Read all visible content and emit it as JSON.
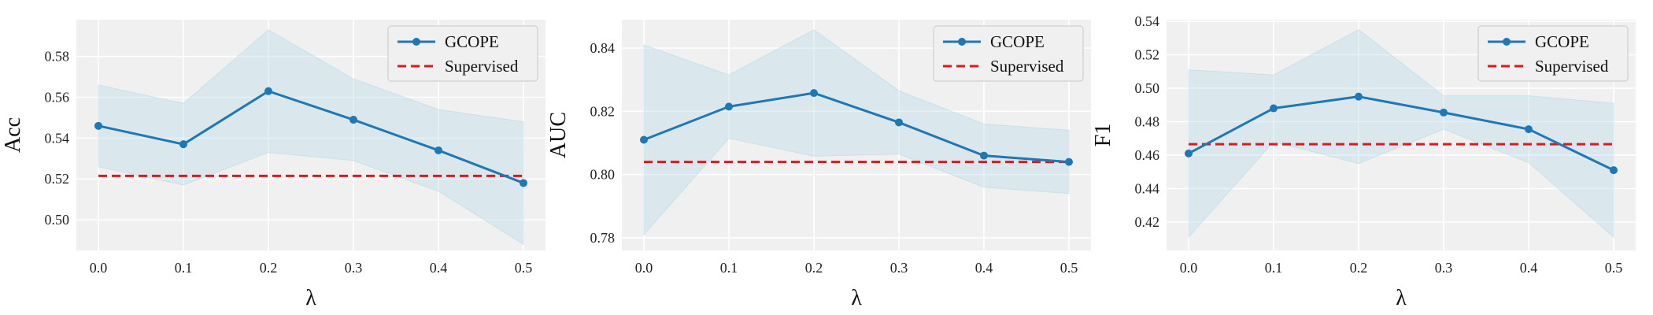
{
  "colors": {
    "gcope": "#1f77b4",
    "supervised": "#e3161b",
    "band": "#add8e6"
  },
  "chart_data": [
    {
      "type": "line",
      "x": [
        0.0,
        0.1,
        0.2,
        0.3,
        0.4,
        0.5
      ],
      "xticks": [
        "0.0",
        "0.1",
        "0.2",
        "0.3",
        "0.4",
        "0.5"
      ],
      "xlabel": "λ",
      "ylabel": "Acc",
      "ylim": [
        0.485,
        0.598
      ],
      "yticks": [
        "0.50",
        "0.52",
        "0.54",
        "0.56",
        "0.58"
      ],
      "grid": true,
      "legend_position": "top-right",
      "series": [
        {
          "name": "GCOPE",
          "values": [
            0.546,
            0.537,
            0.563,
            0.549,
            0.534,
            0.518
          ],
          "upper": [
            0.566,
            0.557,
            0.593,
            0.569,
            0.554,
            0.548
          ],
          "lower": [
            0.526,
            0.517,
            0.533,
            0.529,
            0.514,
            0.488
          ]
        },
        {
          "name": "Supervised",
          "constant": 0.5215
        }
      ]
    },
    {
      "type": "line",
      "x": [
        0.0,
        0.1,
        0.2,
        0.3,
        0.4,
        0.5
      ],
      "xticks": [
        "0.0",
        "0.1",
        "0.2",
        "0.3",
        "0.4",
        "0.5"
      ],
      "xlabel": "λ",
      "ylabel": "AUC",
      "ylim": [
        0.776,
        0.849
      ],
      "yticks": [
        "0.78",
        "0.80",
        "0.82",
        "0.84"
      ],
      "grid": true,
      "legend_position": "top-right",
      "series": [
        {
          "name": "GCOPE",
          "values": [
            0.811,
            0.8215,
            0.8258,
            0.8165,
            0.806,
            0.804
          ],
          "upper": [
            0.841,
            0.8315,
            0.8458,
            0.8265,
            0.816,
            0.814
          ],
          "lower": [
            0.781,
            0.8115,
            0.8058,
            0.8065,
            0.796,
            0.794
          ]
        },
        {
          "name": "Supervised",
          "constant": 0.804
        }
      ]
    },
    {
      "type": "line",
      "x": [
        0.0,
        0.1,
        0.2,
        0.3,
        0.4,
        0.5
      ],
      "xticks": [
        "0.0",
        "0.1",
        "0.2",
        "0.3",
        "0.4",
        "0.5"
      ],
      "xlabel": "λ",
      "ylabel": "F1",
      "ylim": [
        0.403,
        0.541
      ],
      "yticks": [
        "0.42",
        "0.44",
        "0.46",
        "0.48",
        "0.50",
        "0.52",
        "0.54"
      ],
      "grid": true,
      "legend_position": "top-right",
      "series": [
        {
          "name": "GCOPE",
          "values": [
            0.461,
            0.488,
            0.495,
            0.4855,
            0.4755,
            0.451
          ],
          "upper": [
            0.511,
            0.508,
            0.535,
            0.4955,
            0.4955,
            0.491
          ],
          "lower": [
            0.411,
            0.468,
            0.455,
            0.4755,
            0.4555,
            0.411
          ]
        },
        {
          "name": "Supervised",
          "constant": 0.4665
        }
      ]
    }
  ]
}
